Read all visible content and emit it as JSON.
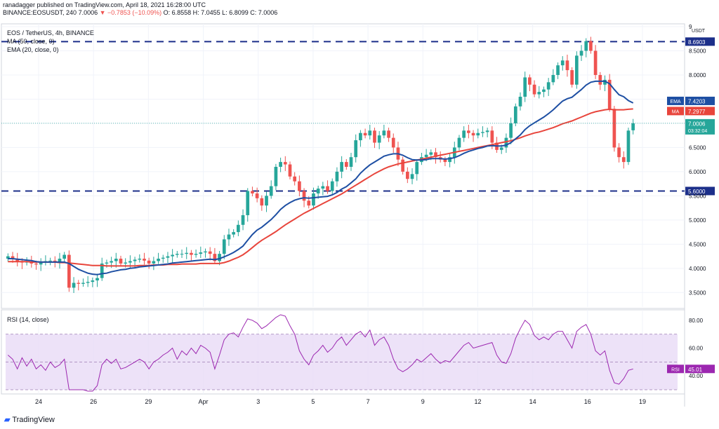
{
  "header": {
    "publisher": "ranadagger published on TradingView.com, April 18, 2021 16:28:00 UTC",
    "symbol_line": "BINANCE:EOSUSDT, 240",
    "last": "7.0006",
    "change": "−0.7853 (−10.09%)",
    "ohlc": "O: 6.8558 H: 7.0455 L: 6.8099 C: 7.0006"
  },
  "legend": {
    "title": "EOS / TetherUS, 4h, BINANCE",
    "ma": "MA (50, close, 0)",
    "ema": "EMA (20, close, 0)",
    "rsi": "RSI (14, close)"
  },
  "footer": {
    "brand": "TradingView"
  },
  "colors": {
    "up": "#26a69a",
    "down": "#ef5350",
    "ema": "#1e4fa3",
    "ma": "#e8453c",
    "rsi": "#9c27b0",
    "rsi_band": "#e9dbf6",
    "level": "#1c2f8a"
  },
  "chart_data": [
    {
      "type": "candlestick",
      "title": "EOS / TetherUS, 4h, BINANCE",
      "unit": "USDT",
      "x_ticks": [
        "24",
        "26",
        "29",
        "Apr",
        "3",
        "5",
        "7",
        "9",
        "12",
        "14",
        "16",
        "19"
      ],
      "y_ticks": [
        "9",
        "8.5000",
        "8.0000",
        "7.5000",
        "7.0000",
        "6.5000",
        "6.0000",
        "5.5000",
        "5.0000",
        "4.5000",
        "4.0000",
        "3.5000"
      ],
      "ylim": [
        3.2,
        9.0
      ],
      "grid": true,
      "horizontal_levels": [
        {
          "value": 8.6903,
          "label": "8.6903"
        },
        {
          "value": 5.6,
          "label": "5.6000"
        }
      ],
      "price_tags": [
        {
          "name": "EMA",
          "value": "7.4203"
        },
        {
          "name": "MA",
          "value": "7.2977"
        },
        {
          "name": "",
          "value": "7.0006",
          "sub": "03:32:04"
        }
      ],
      "closes": [
        4.25,
        4.2,
        4.15,
        4.12,
        4.14,
        4.1,
        4.08,
        4.12,
        4.15,
        4.16,
        4.13,
        4.2,
        4.28,
        3.6,
        3.7,
        3.68,
        3.7,
        3.72,
        3.75,
        3.8,
        4.1,
        4.12,
        4.15,
        4.2,
        4.1,
        4.12,
        4.15,
        4.18,
        4.2,
        4.16,
        4.1,
        4.15,
        4.2,
        4.22,
        4.25,
        4.28,
        4.3,
        4.3,
        4.32,
        4.28,
        4.3,
        4.33,
        4.35,
        4.3,
        4.15,
        4.3,
        4.6,
        4.7,
        4.75,
        4.9,
        5.1,
        5.6,
        5.55,
        5.45,
        5.3,
        5.5,
        5.7,
        6.1,
        6.2,
        6.15,
        5.9,
        5.8,
        5.6,
        5.4,
        5.3,
        5.55,
        5.65,
        5.7,
        5.6,
        5.8,
        6.0,
        6.2,
        6.1,
        6.3,
        6.65,
        6.8,
        6.75,
        6.85,
        6.6,
        6.75,
        6.85,
        6.7,
        6.5,
        6.25,
        6.0,
        5.85,
        5.95,
        6.2,
        6.3,
        6.35,
        6.4,
        6.3,
        6.25,
        6.2,
        6.3,
        6.5,
        6.7,
        6.85,
        6.8,
        6.75,
        6.8,
        6.82,
        6.85,
        6.6,
        6.45,
        6.5,
        6.7,
        7.0,
        7.35,
        7.55,
        7.95,
        7.8,
        7.6,
        7.65,
        7.7,
        7.85,
        8.0,
        8.2,
        8.3,
        8.1,
        7.8,
        8.4,
        8.5,
        8.7,
        8.5,
        8.0,
        7.8,
        7.9,
        7.3,
        6.5,
        6.3,
        6.2,
        6.85,
        7.0006
      ],
      "opens": [
        4.2,
        4.25,
        4.2,
        4.15,
        4.12,
        4.14,
        4.1,
        4.08,
        4.12,
        4.15,
        4.16,
        4.13,
        4.2,
        4.28,
        3.6,
        3.7,
        3.68,
        3.7,
        3.72,
        3.75,
        3.8,
        4.1,
        4.12,
        4.15,
        4.2,
        4.1,
        4.12,
        4.15,
        4.18,
        4.2,
        4.16,
        4.1,
        4.15,
        4.2,
        4.22,
        4.25,
        4.28,
        4.3,
        4.3,
        4.32,
        4.28,
        4.3,
        4.33,
        4.35,
        4.3,
        4.15,
        4.3,
        4.6,
        4.7,
        4.75,
        4.9,
        5.1,
        5.6,
        5.55,
        5.45,
        5.3,
        5.5,
        5.7,
        6.1,
        6.2,
        6.15,
        5.9,
        5.8,
        5.6,
        5.4,
        5.3,
        5.55,
        5.65,
        5.7,
        5.6,
        5.8,
        6.0,
        6.2,
        6.1,
        6.3,
        6.65,
        6.8,
        6.75,
        6.85,
        6.6,
        6.75,
        6.85,
        6.7,
        6.5,
        6.25,
        6.0,
        5.85,
        5.95,
        6.2,
        6.3,
        6.35,
        6.4,
        6.3,
        6.25,
        6.2,
        6.3,
        6.5,
        6.7,
        6.85,
        6.8,
        6.75,
        6.8,
        6.82,
        6.85,
        6.6,
        6.45,
        6.5,
        6.7,
        7.0,
        7.35,
        7.55,
        7.95,
        7.8,
        7.6,
        7.65,
        7.7,
        7.85,
        8.0,
        8.2,
        8.3,
        8.1,
        7.8,
        8.4,
        8.5,
        8.7,
        8.5,
        8.0,
        7.8,
        7.9,
        7.3,
        6.5,
        6.3,
        6.2,
        6.8558
      ],
      "ema20": [
        4.2,
        4.2,
        4.19,
        4.18,
        4.17,
        4.16,
        4.14,
        4.13,
        4.13,
        4.13,
        4.13,
        4.13,
        4.13,
        4.1,
        4.04,
        3.98,
        3.94,
        3.9,
        3.88,
        3.87,
        3.89,
        3.9,
        3.93,
        3.95,
        3.97,
        3.98,
        4.0,
        4.01,
        4.03,
        4.04,
        4.05,
        4.06,
        4.07,
        4.08,
        4.09,
        4.11,
        4.12,
        4.13,
        4.14,
        4.15,
        4.16,
        4.17,
        4.18,
        4.19,
        4.18,
        4.2,
        4.24,
        4.28,
        4.33,
        4.39,
        4.46,
        4.58,
        4.7,
        4.79,
        4.85,
        4.93,
        5.01,
        5.11,
        5.22,
        5.3,
        5.36,
        5.41,
        5.44,
        5.46,
        5.45,
        5.46,
        5.47,
        5.48,
        5.49,
        5.52,
        5.57,
        5.64,
        5.69,
        5.77,
        5.85,
        5.97,
        6.06,
        6.14,
        6.2,
        6.26,
        6.32,
        6.35,
        6.37,
        6.37,
        6.34,
        6.29,
        6.25,
        6.24,
        6.24,
        6.25,
        6.27,
        6.27,
        6.27,
        6.26,
        6.27,
        6.29,
        6.33,
        6.38,
        6.42,
        6.45,
        6.48,
        6.5,
        6.53,
        6.54,
        6.53,
        6.53,
        6.55,
        6.6,
        6.68,
        6.76,
        6.87,
        6.95,
        7.01,
        7.07,
        7.13,
        7.2,
        7.28,
        7.37,
        7.46,
        7.51,
        7.54,
        7.62,
        7.7,
        7.79,
        7.85,
        7.87,
        7.87,
        7.87,
        7.82,
        7.7,
        7.59,
        7.55,
        7.47,
        7.4203
      ],
      "ma50": [
        4.14,
        4.14,
        4.14,
        4.14,
        4.14,
        4.13,
        4.13,
        4.13,
        4.13,
        4.13,
        4.13,
        4.12,
        4.12,
        4.11,
        4.1,
        4.09,
        4.08,
        4.07,
        4.06,
        4.06,
        4.06,
        4.05,
        4.05,
        4.05,
        4.05,
        4.05,
        4.05,
        4.05,
        4.06,
        4.06,
        4.06,
        4.07,
        4.07,
        4.07,
        4.08,
        4.08,
        4.08,
        4.09,
        4.09,
        4.09,
        4.09,
        4.1,
        4.1,
        4.1,
        4.1,
        4.1,
        4.12,
        4.15,
        4.19,
        4.23,
        4.28,
        4.35,
        4.43,
        4.51,
        4.58,
        4.64,
        4.7,
        4.76,
        4.83,
        4.9,
        4.96,
        5.02,
        5.08,
        5.14,
        5.19,
        5.24,
        5.29,
        5.34,
        5.39,
        5.44,
        5.49,
        5.54,
        5.6,
        5.66,
        5.72,
        5.78,
        5.84,
        5.9,
        5.96,
        6.01,
        6.06,
        6.1,
        6.13,
        6.16,
        6.18,
        6.2,
        6.22,
        6.24,
        6.26,
        6.28,
        6.3,
        6.32,
        6.34,
        6.36,
        6.38,
        6.4,
        6.42,
        6.44,
        6.46,
        6.48,
        6.5,
        6.52,
        6.54,
        6.56,
        6.58,
        6.6,
        6.62,
        6.64,
        6.67,
        6.7,
        6.74,
        6.77,
        6.8,
        6.82,
        6.85,
        6.88,
        6.91,
        6.95,
        6.99,
        7.02,
        7.05,
        7.09,
        7.13,
        7.17,
        7.21,
        7.24,
        7.26,
        7.28,
        7.29,
        7.28,
        7.28,
        7.28,
        7.29,
        7.2977
      ]
    },
    {
      "type": "line",
      "title": "RSI (14, close)",
      "y_ticks": [
        "80.00",
        "60.00",
        "40.00"
      ],
      "ylim": [
        28,
        85
      ],
      "band": [
        30,
        70
      ],
      "last_value": "45.01",
      "values": [
        55,
        52,
        45,
        53,
        47,
        52,
        45,
        48,
        44,
        50,
        46,
        48,
        52,
        30,
        30,
        30,
        30,
        29,
        29,
        33,
        48,
        52,
        49,
        52,
        45,
        46,
        48,
        50,
        52,
        50,
        45,
        50,
        52,
        55,
        57,
        60,
        52,
        58,
        55,
        60,
        56,
        62,
        60,
        57,
        45,
        55,
        66,
        70,
        71,
        68,
        75,
        81,
        80,
        78,
        74,
        76,
        79,
        82,
        84,
        83,
        76,
        70,
        58,
        52,
        48,
        55,
        58,
        62,
        57,
        60,
        65,
        68,
        62,
        66,
        70,
        72,
        68,
        73,
        62,
        66,
        68,
        62,
        52,
        45,
        43,
        45,
        48,
        52,
        50,
        53,
        56,
        52,
        49,
        51,
        50,
        54,
        58,
        62,
        64,
        60,
        61,
        62,
        63,
        64,
        55,
        50,
        49,
        56,
        67,
        74,
        80,
        77,
        69,
        66,
        68,
        66,
        70,
        72,
        72,
        66,
        60,
        72,
        75,
        77,
        70,
        58,
        55,
        58,
        44,
        35,
        34,
        38,
        44,
        45.01
      ]
    }
  ]
}
